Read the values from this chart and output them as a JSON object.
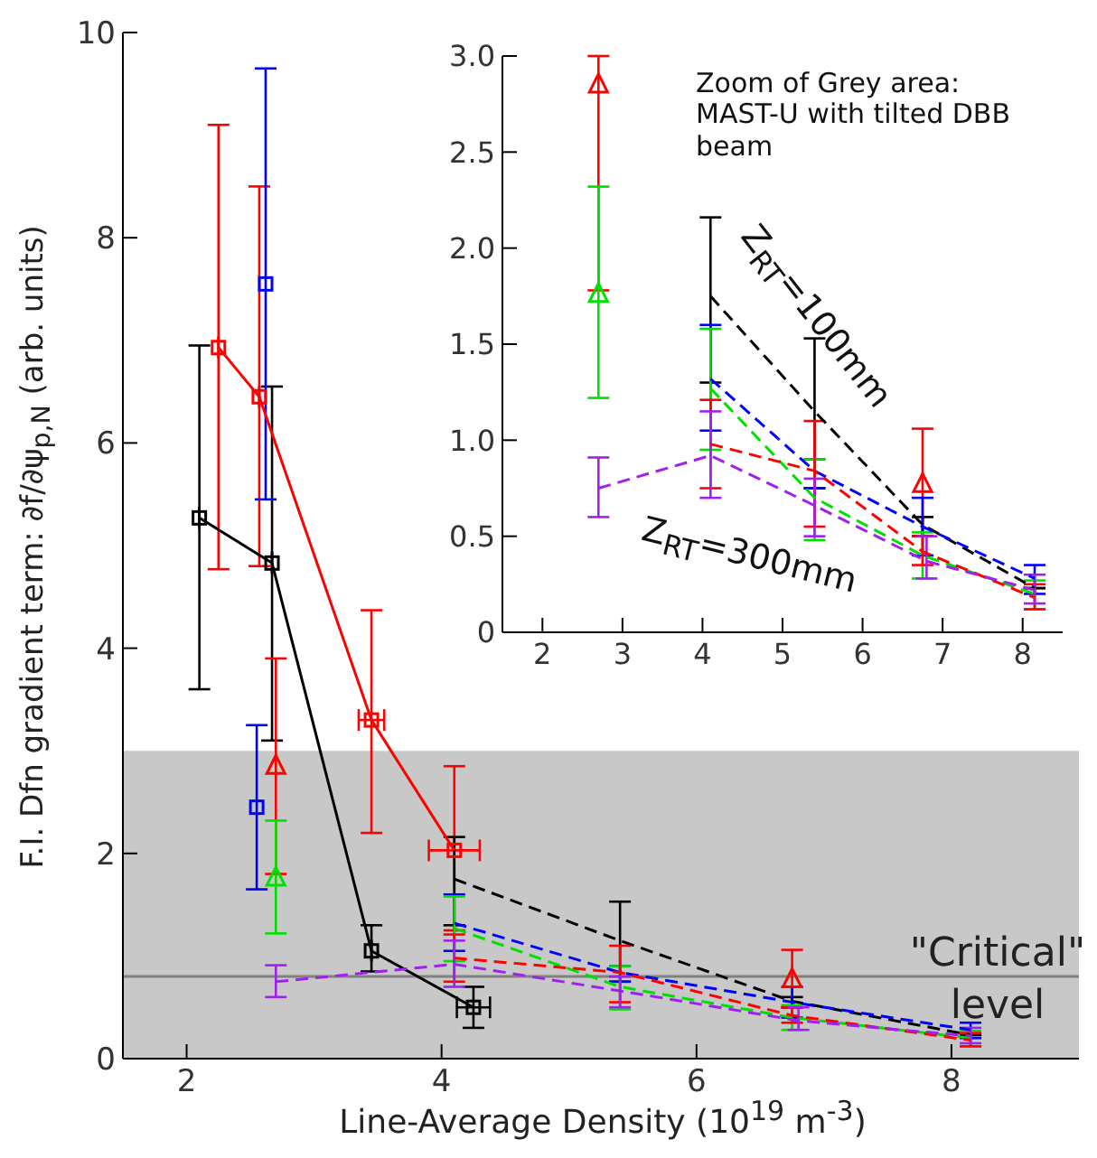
{
  "chart_data": [
    {
      "type": "line",
      "xlabel": "Line-Average Density (10$^{19}$ m$^{-3}$)",
      "ylabel": "F.I. Dfn gradient term: ∂f/∂ψ$_{p,N}$ (arb. units)",
      "xlim": [
        1.5,
        9.0
      ],
      "xticks": [
        2,
        4,
        6,
        8
      ],
      "ylim": [
        0,
        10
      ],
      "yticks": [
        0,
        2,
        4,
        6,
        8,
        10
      ],
      "grid": false,
      "legend": false,
      "bands": [
        {
          "axis": "y",
          "from": 0,
          "to": 3,
          "color": "#c8c8c8"
        }
      ],
      "ref_lines": [
        {
          "axis": "y",
          "value": 0.8,
          "label": "\"Critical\" level",
          "color": "#808080"
        }
      ],
      "series": [
        {
          "type": "line",
          "color": "#000000",
          "marker": "square",
          "line_style": "solid",
          "x": [
            2.1,
            2.67,
            3.45,
            4.25
          ],
          "values": [
            5.27,
            4.83,
            1.05,
            0.5
          ],
          "errors": [
            [
              3.6,
              6.95
            ],
            [
              3.1,
              6.55
            ],
            [
              0.85,
              1.3
            ],
            [
              0.3,
              0.7
            ]
          ],
          "xerrors": [
            null,
            null,
            null,
            0.13
          ]
        },
        {
          "type": "line",
          "color": "#ff0000",
          "marker": "square",
          "line_style": "solid",
          "x": [
            2.25,
            2.57,
            3.45,
            4.1
          ],
          "values": [
            6.93,
            6.45,
            3.3,
            2.03
          ],
          "errors": [
            [
              4.77,
              9.1
            ],
            [
              4.8,
              8.5
            ],
            [
              2.2,
              4.37
            ],
            [
              1.25,
              2.85
            ]
          ],
          "xerrors": [
            null,
            null,
            0.1,
            0.2
          ]
        },
        {
          "type": "scatter",
          "color": "#0000ff",
          "marker": "square",
          "x": [
            2.62,
            2.55
          ],
          "values": [
            7.55,
            2.45
          ],
          "errors": [
            [
              5.45,
              9.65
            ],
            [
              1.65,
              3.25
            ]
          ]
        },
        {
          "type": "scatter",
          "color": "#ff0000",
          "marker": "triangle",
          "x": [
            2.7,
            6.75
          ],
          "values": [
            2.85,
            0.77
          ],
          "errors": [
            [
              1.8,
              3.9
            ],
            [
              0.5,
              1.06
            ]
          ]
        },
        {
          "type": "scatter",
          "color": "#00e000",
          "marker": "triangle",
          "x": [
            2.7
          ],
          "values": [
            1.76
          ],
          "errors": [
            [
              1.22,
              2.32
            ]
          ]
        },
        {
          "type": "line",
          "color": "#000000",
          "marker": "none",
          "line_style": "dashed",
          "x": [
            4.1,
            5.4,
            6.75,
            8.15
          ],
          "values": [
            1.75,
            1.15,
            0.56,
            0.23
          ],
          "errors": [
            [
              1.3,
              2.16
            ],
            [
              0.75,
              1.53
            ],
            [
              0.5,
              0.6
            ],
            null
          ]
        },
        {
          "type": "line",
          "color": "#0000ff",
          "marker": "none",
          "line_style": "dashed",
          "x": [
            4.1,
            5.4,
            6.75,
            8.15
          ],
          "values": [
            1.32,
            0.84,
            0.55,
            0.28
          ],
          "errors": [
            [
              1.05,
              1.6
            ],
            [
              0.75,
              0.9
            ],
            [
              0.4,
              0.7
            ],
            [
              0.2,
              0.35
            ]
          ]
        },
        {
          "type": "line",
          "color": "#00e000",
          "marker": "none",
          "line_style": "dashed",
          "x": [
            4.1,
            5.4,
            6.75,
            8.15
          ],
          "values": [
            1.27,
            0.7,
            0.4,
            0.2
          ],
          "errors": [
            [
              0.95,
              1.58
            ],
            [
              0.48,
              0.9
            ],
            [
              0.28,
              0.52
            ],
            [
              0.12,
              0.27
            ]
          ]
        },
        {
          "type": "line",
          "color": "#ff0000",
          "marker": "none",
          "line_style": "dashed",
          "x": [
            4.1,
            5.4,
            6.75,
            8.15
          ],
          "values": [
            0.98,
            0.84,
            0.42,
            0.18
          ],
          "errors": [
            [
              0.75,
              1.21
            ],
            [
              0.55,
              1.1
            ],
            [
              0.35,
              0.5
            ],
            [
              0.12,
              0.25
            ]
          ]
        },
        {
          "type": "line",
          "color": "#a020f0",
          "marker": "none",
          "line_style": "dashed",
          "x": [
            2.7,
            4.1,
            5.4,
            6.8,
            8.15
          ],
          "values": [
            0.75,
            0.92,
            0.66,
            0.37,
            0.22
          ],
          "errors": [
            [
              0.6,
              0.91
            ],
            [
              0.7,
              1.15
            ],
            [
              0.5,
              0.8
            ],
            [
              0.28,
              0.5
            ],
            [
              0.15,
              0.3
            ]
          ]
        }
      ]
    },
    {
      "type": "line",
      "xlim": [
        1.5,
        8.5
      ],
      "xticks": [
        2,
        3,
        4,
        5,
        6,
        7,
        8
      ],
      "ylim": [
        0,
        3
      ],
      "yticks": [
        0,
        {
          "value": 0.5,
          "label": "0.5"
        },
        {
          "value": 1,
          "label": "1.0"
        },
        {
          "value": 1.5,
          "label": "1.5"
        },
        {
          "value": 2,
          "label": "2.0"
        },
        {
          "value": 2.5,
          "label": "2.5"
        },
        {
          "value": 3,
          "label": "3.0"
        }
      ],
      "grid": false,
      "legend": false,
      "annotations": [
        "Zoom of Grey area: MAST-U with tilted DBB beam",
        "Z$_{RT}$=100mm",
        "Z$_{RT}$=300mm"
      ],
      "series": [
        {
          "type": "scatter",
          "color": "#ff0000",
          "marker": "triangle",
          "x": [
            2.7,
            6.75
          ],
          "values": [
            2.85,
            0.77
          ],
          "errors": [
            [
              1.78,
              3.0
            ],
            [
              0.5,
              1.06
            ]
          ]
        },
        {
          "type": "scatter",
          "color": "#00e000",
          "marker": "triangle",
          "x": [
            2.7
          ],
          "values": [
            1.76
          ],
          "errors": [
            [
              1.22,
              2.32
            ]
          ]
        },
        {
          "type": "line",
          "color": "#000000",
          "marker": "none",
          "line_style": "dashed",
          "x": [
            4.1,
            5.4,
            6.75,
            8.15
          ],
          "values": [
            1.75,
            1.15,
            0.56,
            0.23
          ],
          "errors": [
            [
              1.3,
              2.16
            ],
            [
              0.75,
              1.53
            ],
            [
              0.5,
              0.6
            ],
            null
          ]
        },
        {
          "type": "line",
          "color": "#0000ff",
          "marker": "none",
          "line_style": "dashed",
          "x": [
            4.1,
            5.4,
            6.75,
            8.15
          ],
          "values": [
            1.32,
            0.84,
            0.55,
            0.28
          ],
          "errors": [
            [
              1.05,
              1.6
            ],
            [
              0.75,
              0.9
            ],
            [
              0.4,
              0.7
            ],
            [
              0.2,
              0.35
            ]
          ]
        },
        {
          "type": "line",
          "color": "#00e000",
          "marker": "none",
          "line_style": "dashed",
          "x": [
            4.1,
            5.4,
            6.75,
            8.15
          ],
          "values": [
            1.27,
            0.7,
            0.4,
            0.2
          ],
          "errors": [
            [
              0.95,
              1.58
            ],
            [
              0.48,
              0.9
            ],
            [
              0.28,
              0.52
            ],
            [
              0.12,
              0.27
            ]
          ]
        },
        {
          "type": "line",
          "color": "#ff0000",
          "marker": "none",
          "line_style": "dashed",
          "x": [
            4.1,
            5.4,
            6.75,
            8.15
          ],
          "values": [
            0.98,
            0.84,
            0.42,
            0.18
          ],
          "errors": [
            [
              0.75,
              1.21
            ],
            [
              0.55,
              1.1
            ],
            [
              0.35,
              0.5
            ],
            [
              0.12,
              0.25
            ]
          ]
        },
        {
          "type": "line",
          "color": "#a020f0",
          "marker": "none",
          "line_style": "dashed",
          "x": [
            2.7,
            4.1,
            5.4,
            6.8,
            8.15
          ],
          "values": [
            0.75,
            0.92,
            0.66,
            0.37,
            0.22
          ],
          "errors": [
            [
              0.6,
              0.91
            ],
            [
              0.7,
              1.15
            ],
            [
              0.5,
              0.8
            ],
            [
              0.28,
              0.5
            ],
            [
              0.15,
              0.3
            ]
          ]
        }
      ]
    }
  ]
}
